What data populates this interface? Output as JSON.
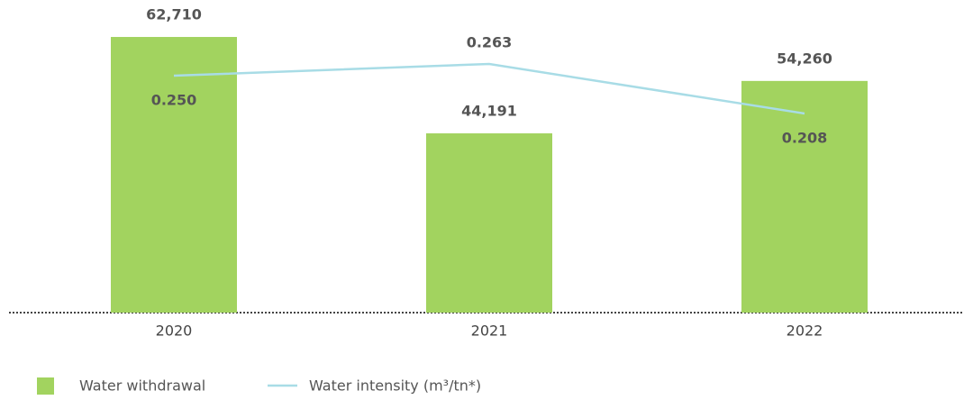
{
  "chart_data": {
    "type": "bar+line",
    "categories": [
      "2020",
      "2021",
      "2022"
    ],
    "series": [
      {
        "name": "Water withdrawal",
        "type": "bar",
        "color": "#a2d35f",
        "axis": "y",
        "values": [
          62710,
          44191,
          54260
        ],
        "value_labels": [
          "62,710",
          "44,191",
          "54,260"
        ]
      },
      {
        "name": "Water intensity (m³/tn*)",
        "type": "line",
        "color": "#a8dce6",
        "axis": "y2",
        "values": [
          0.25,
          0.263,
          0.208
        ],
        "value_labels": [
          "0.250",
          "0.263",
          "0.208"
        ]
      }
    ],
    "ylim": [
      9750,
      66350
    ],
    "y2lim": [
      -0.013,
      0.314
    ]
  }
}
